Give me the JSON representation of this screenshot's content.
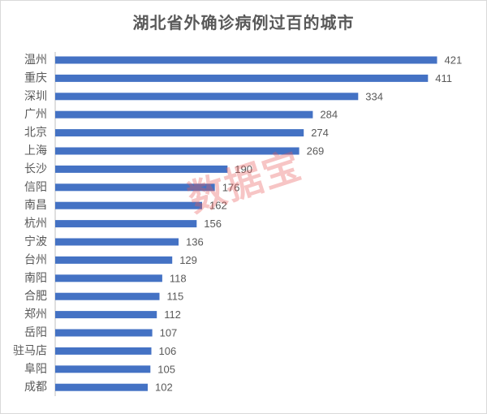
{
  "chart_data": {
    "type": "bar",
    "orientation": "horizontal",
    "title": "湖北省外确诊病例过百的城市",
    "categories": [
      "温州",
      "重庆",
      "深圳",
      "广州",
      "北京",
      "上海",
      "长沙",
      "信阳",
      "南昌",
      "杭州",
      "宁波",
      "台州",
      "南阳",
      "合肥",
      "郑州",
      "岳阳",
      "驻马店",
      "阜阳",
      "成都"
    ],
    "values": [
      421,
      411,
      334,
      284,
      274,
      269,
      190,
      176,
      162,
      156,
      136,
      129,
      118,
      115,
      112,
      107,
      106,
      105,
      102
    ],
    "xlim": [
      0,
      460
    ],
    "grid": false,
    "legend": "none",
    "data_labels": true,
    "bar_color": "#4472c4",
    "label_color": "#595959"
  },
  "watermark": "数据宝"
}
